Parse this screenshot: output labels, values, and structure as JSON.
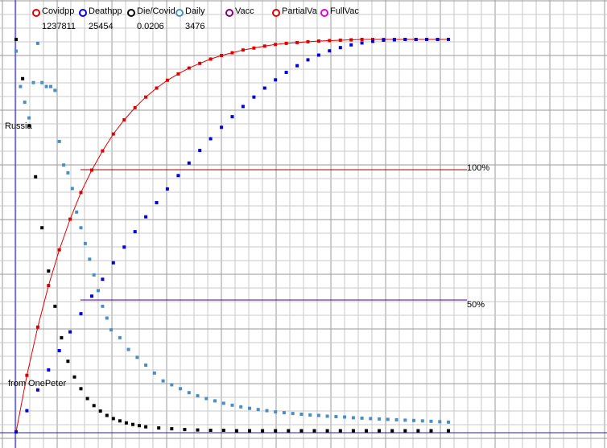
{
  "chart_data": {
    "type": "scatter",
    "title": "",
    "xlabel": "",
    "ylabel": "",
    "grid": true,
    "legend_position": "top",
    "annotations": {
      "country": "Russia",
      "source": "from OnePeter",
      "ref_100": "100%",
      "ref_50": "50%"
    },
    "legend": [
      {
        "name": "Covidpp",
        "value": "1237811",
        "color": "#e00000"
      },
      {
        "name": "Deathpp",
        "value": "25454",
        "color": "#0000e0"
      },
      {
        "name": "Die/Covid",
        "value": "0.0206",
        "color": "#000000"
      },
      {
        "name": "Daily",
        "value": "3476",
        "color": "#4a8ec4"
      },
      {
        "name": "Vacc",
        "value": "",
        "color": "#800080"
      },
      {
        "name": "PartialVa",
        "value": "",
        "color": "#e00000"
      },
      {
        "name": "FullVac",
        "value": "",
        "color": "#e000e0"
      }
    ],
    "reference_lines": [
      {
        "label": "100%",
        "y": 66.8,
        "color": "#a00000"
      },
      {
        "label": "50%",
        "y": 33.6,
        "color": "#4b0082"
      }
    ],
    "xlim": [
      0,
      100
    ],
    "ylim": [
      0,
      100
    ],
    "series": [
      {
        "name": "Covidpp",
        "color": "#e00000",
        "line": true,
        "x": [
          0,
          2.5,
          5,
          7.5,
          10,
          12.5,
          15,
          17.5,
          20,
          22.5,
          25,
          27.5,
          30,
          32.5,
          35,
          37.5,
          40,
          42.5,
          45,
          47.5,
          50,
          52.5,
          55,
          57.5,
          60,
          62.5,
          65,
          67.5,
          70,
          72.5,
          75,
          77.5,
          80,
          82.5,
          85,
          87.5,
          90,
          92.5,
          95,
          97.5,
          100
        ],
        "y": [
          0,
          14.4,
          26.7,
          37.3,
          46.4,
          54.2,
          61,
          66.7,
          71.6,
          75.9,
          79.5,
          82.6,
          85.3,
          87.6,
          89.6,
          91.2,
          92.7,
          93.9,
          95,
          95.9,
          96.6,
          97.3,
          97.8,
          98.3,
          98.7,
          99,
          99.2,
          99.4,
          99.6,
          99.7,
          99.8,
          99.9,
          100,
          100,
          100,
          100,
          100,
          100,
          100,
          100,
          100
        ]
      },
      {
        "name": "Deathpp",
        "color": "#0000e0",
        "line": false,
        "x": [
          0,
          2.5,
          5,
          7.5,
          10,
          12.5,
          15,
          17.5,
          20,
          22.5,
          25,
          27.5,
          30,
          32.5,
          35,
          37.5,
          40,
          42.5,
          45,
          47.5,
          50,
          52.5,
          55,
          57.5,
          60,
          62.5,
          65,
          67.5,
          70,
          72.5,
          75,
          77.5,
          80,
          82.5,
          85,
          87.5,
          90,
          92.5,
          95,
          97.5,
          100
        ],
        "y": [
          0,
          5.4,
          10.7,
          15.8,
          20.7,
          25.5,
          30.1,
          34.6,
          38.9,
          43.1,
          47.1,
          51,
          54.8,
          58.4,
          61.9,
          65.3,
          68.5,
          71.7,
          74.7,
          77.6,
          80.3,
          82.9,
          85.3,
          87.6,
          89.7,
          91.6,
          93.3,
          94.8,
          96,
          97.1,
          97.9,
          98.6,
          99.1,
          99.5,
          99.8,
          99.9,
          100,
          100,
          100,
          100,
          100
        ]
      },
      {
        "name": "Die/Covid",
        "color": "#000000",
        "line": false,
        "x": [
          0,
          1.5,
          3,
          4.5,
          6,
          7.5,
          9,
          10.5,
          12,
          13.5,
          15,
          16.5,
          18,
          19.5,
          21,
          22.5,
          24,
          25.5,
          27,
          28.5,
          30,
          33,
          36,
          39,
          42,
          45,
          48,
          51,
          54,
          57,
          60,
          63,
          66,
          69,
          72,
          75,
          78,
          81,
          84,
          87,
          90,
          93,
          96,
          100
        ],
        "y": [
          100,
          90,
          78,
          65,
          52,
          41,
          32,
          24,
          18,
          14,
          11,
          8.5,
          6.7,
          5.3,
          4.2,
          3.4,
          2.8,
          2.3,
          1.9,
          1.6,
          1.3,
          1,
          0.8,
          0.6,
          0.5,
          0.4,
          0.4,
          0.3,
          0.3,
          0.3,
          0.3,
          0.3,
          0.3,
          0.3,
          0.3,
          0.3,
          0.3,
          0.3,
          0.3,
          0.3,
          0.3,
          0.3,
          0.3,
          0.3
        ]
      },
      {
        "name": "Daily",
        "color": "#4a8ec4",
        "line": false,
        "x": [
          0,
          1,
          2,
          3,
          4,
          5,
          6,
          7,
          8,
          9,
          10,
          11,
          12,
          13,
          14,
          15,
          16,
          17,
          18,
          19,
          20,
          21,
          22,
          24,
          26,
          28,
          30,
          32,
          34,
          36,
          38,
          40,
          42,
          44,
          46,
          48,
          50,
          52,
          54,
          56,
          58,
          60,
          62,
          64,
          66,
          68,
          70,
          72,
          74,
          76,
          78,
          80,
          82,
          84,
          86,
          88,
          90,
          92,
          94,
          96,
          98,
          100
        ],
        "y": [
          97,
          88,
          84,
          80,
          89,
          99,
          89,
          88,
          88,
          87,
          74,
          68,
          66,
          62,
          56,
          52,
          48,
          44,
          40,
          36,
          32,
          29,
          26,
          24,
          21,
          19,
          17,
          15,
          13,
          12,
          11,
          10,
          9.2,
          8.5,
          7.9,
          7.3,
          6.8,
          6.4,
          6,
          5.7,
          5.4,
          5.1,
          4.9,
          4.7,
          4.5,
          4.3,
          4.2,
          4,
          3.9,
          3.8,
          3.6,
          3.5,
          3.4,
          3.3,
          3.2,
          3.1,
          3,
          2.9,
          2.8,
          2.7,
          2.6,
          2.5
        ]
      }
    ]
  }
}
